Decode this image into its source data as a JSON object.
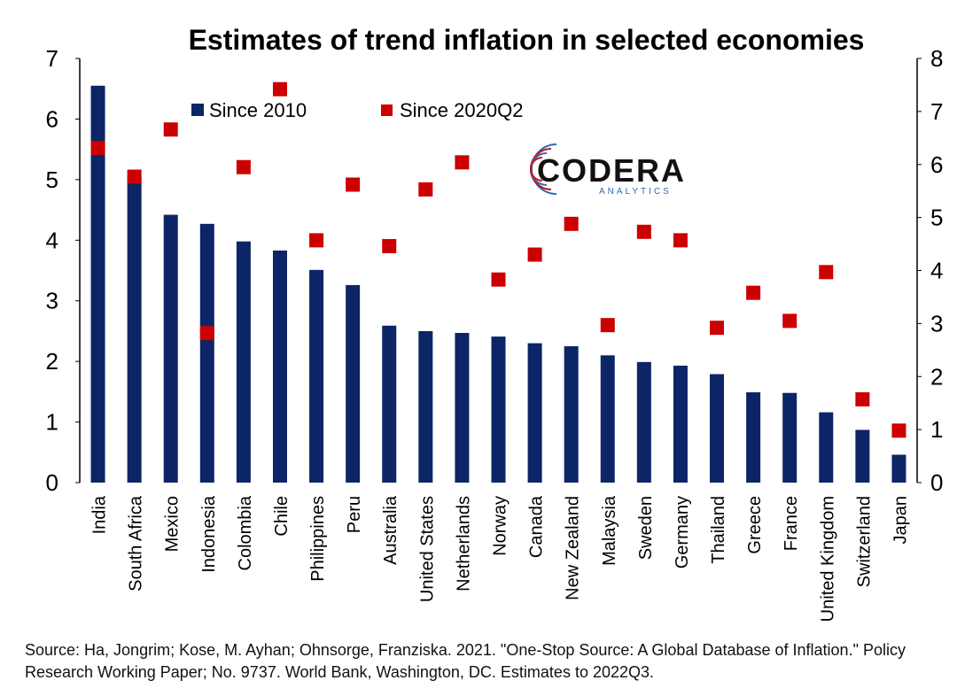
{
  "chart_data": {
    "type": "bar",
    "title": "Estimates of trend inflation in selected economies",
    "categories": [
      "India",
      "South Africa",
      "Mexico",
      "Indonesia",
      "Colombia",
      "Chile",
      "Philippines",
      "Peru",
      "Australia",
      "United States",
      "Netherlands",
      "Norway",
      "Canada",
      "New Zealand",
      "Malaysia",
      "Sweden",
      "Germany",
      "Thailand",
      "Greece",
      "France",
      "United Kingdom",
      "Switzerland",
      "Japan"
    ],
    "series": [
      {
        "name": "Since 2010",
        "type": "bar",
        "axis": "left",
        "color": "#0b2566",
        "values": [
          6.55,
          5.05,
          4.42,
          4.27,
          3.98,
          3.83,
          3.51,
          3.26,
          2.59,
          2.5,
          2.47,
          2.41,
          2.3,
          2.25,
          2.1,
          1.99,
          1.93,
          1.79,
          1.49,
          1.48,
          1.16,
          0.87,
          0.46
        ]
      },
      {
        "name": "Since 2020Q2",
        "type": "scatter",
        "axis": "right",
        "color": "#cc0000",
        "values": [
          6.31,
          5.77,
          6.66,
          2.82,
          5.95,
          7.42,
          4.57,
          5.62,
          4.46,
          5.53,
          6.04,
          3.83,
          4.3,
          4.88,
          2.97,
          4.73,
          4.57,
          2.92,
          3.58,
          3.05,
          3.97,
          1.57,
          0.98
        ]
      }
    ],
    "ylim": [
      0,
      7
    ],
    "y2lim": [
      0,
      8
    ],
    "yticks": [
      "0",
      "1",
      "2",
      "3",
      "4",
      "5",
      "6",
      "7"
    ],
    "y2ticks": [
      "0",
      "1",
      "2",
      "3",
      "4",
      "5",
      "6",
      "7",
      "8"
    ],
    "grid": false,
    "legend_placement": "top-left"
  },
  "source_note": "Source: Ha, Jongrim; Kose, M. Ayhan; Ohnsorge, Franziska. 2021. \"One-Stop Source: A Global Database of Inflation.\" Policy Research Working Paper; No. 9737. World Bank, Washington, DC. Estimates to 2022Q3.",
  "logo": {
    "name": "CODERA",
    "tagline": "ANALYTICS"
  }
}
